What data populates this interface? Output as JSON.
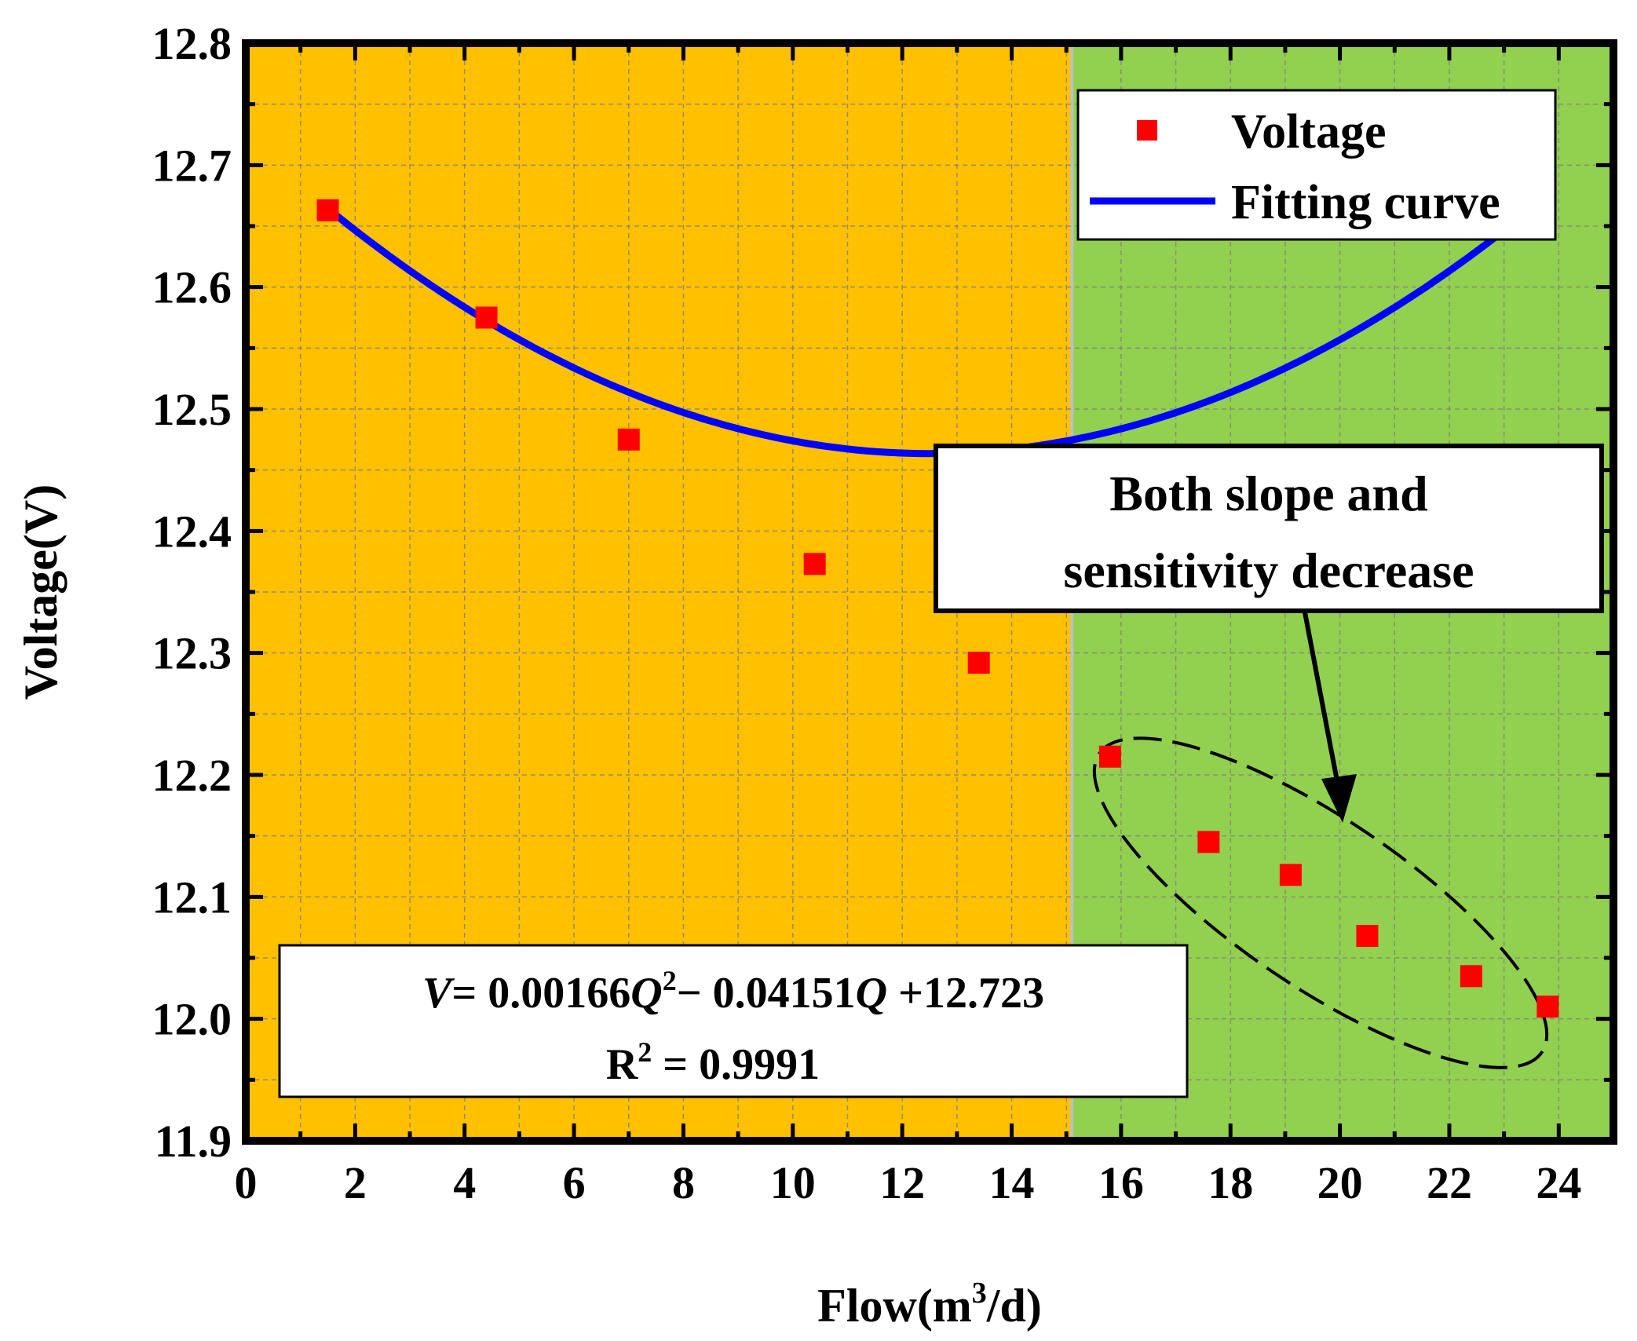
{
  "chart_data": {
    "type": "scatter",
    "xlabel_prefix": "Flow(m",
    "xlabel_sup": "3",
    "xlabel_suffix": "/d)",
    "ylabel": "Voltage(V)",
    "xlim": [
      0,
      25
    ],
    "ylim": [
      11.9,
      12.8
    ],
    "xticks": [
      "0",
      "2",
      "4",
      "6",
      "8",
      "10",
      "12",
      "14",
      "16",
      "18",
      "20",
      "22",
      "24"
    ],
    "yticks": [
      "11.9",
      "12.0",
      "12.1",
      "12.2",
      "12.3",
      "12.4",
      "12.5",
      "12.6",
      "12.7",
      "12.8"
    ],
    "regions": [
      {
        "name": "low-flow",
        "x_range": [
          0,
          15.1
        ],
        "color": "#ffc000"
      },
      {
        "name": "high-flow",
        "x_range": [
          15.1,
          25
        ],
        "color": "#92d050"
      }
    ],
    "grid": true,
    "series": [
      {
        "name": "Voltage",
        "kind": "markers",
        "color": "#ff0000",
        "x": [
          1.5,
          4.4,
          7.0,
          10.4,
          13.4,
          15.8,
          17.6,
          19.1,
          20.5,
          22.4,
          23.8
        ],
        "y": [
          12.663,
          12.575,
          12.475,
          12.373,
          12.292,
          12.215,
          12.145,
          12.118,
          12.068,
          12.035,
          12.01
        ]
      },
      {
        "name": "Fitting curve",
        "kind": "line",
        "color": "#0000ff",
        "equation": {
          "a": 0.00166,
          "b": -0.04151,
          "c": 12.723
        },
        "x_range": [
          1.5,
          23.8
        ]
      }
    ],
    "legend": {
      "position": "top-right",
      "entries": [
        "Voltage",
        "Fitting curve"
      ]
    },
    "annotation": {
      "line1": "Both slope and",
      "line2": "sensitivity decrease",
      "target": "points with flow above 15.5"
    },
    "equation_box": {
      "v_symbol": "V",
      "part1": "= 0.00166",
      "q_symbol": "Q",
      "power": "2",
      "part2": "− 0.04151",
      "part3": " +12.723",
      "r_symbol": "R",
      "r_power": "2",
      "r_value": " = 0.9991"
    }
  }
}
